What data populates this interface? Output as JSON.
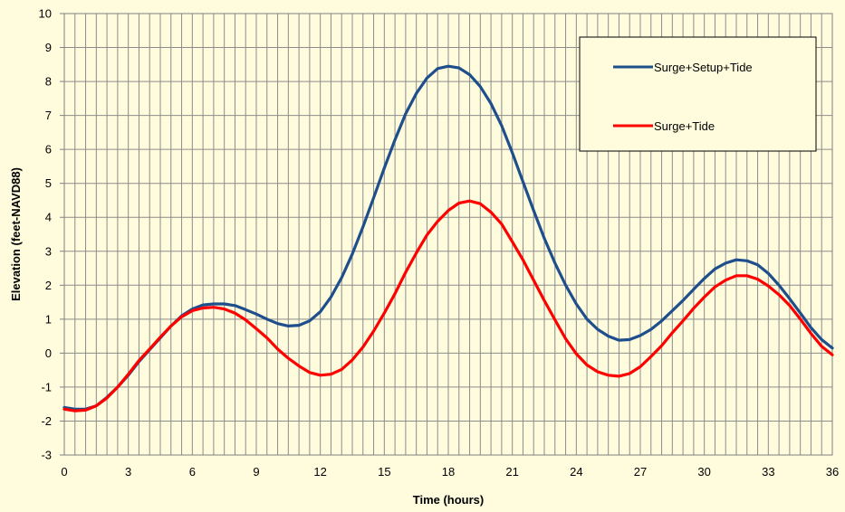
{
  "chart_data": {
    "type": "line",
    "xlabel": "Time (hours)",
    "ylabel": "Elevation (feet-NAVD88)",
    "xlim": [
      0,
      36
    ],
    "ylim": [
      -3,
      10
    ],
    "xticks": [
      "0",
      "3",
      "6",
      "9",
      "12",
      "15",
      "18",
      "21",
      "24",
      "27",
      "30",
      "33",
      "36"
    ],
    "yticks": [
      "-3",
      "-2",
      "-1",
      "0",
      "1",
      "2",
      "3",
      "4",
      "5",
      "6",
      "7",
      "8",
      "9",
      "10"
    ],
    "x_minor_step": 0.5,
    "grid": true,
    "legend_position": "top-right",
    "series": [
      {
        "name": "Surge+Setup+Tide",
        "color": "#1f4e8c",
        "x": [
          0,
          0.5,
          1,
          1.5,
          2,
          2.5,
          3,
          3.5,
          4,
          4.5,
          5,
          5.5,
          6,
          6.5,
          7,
          7.5,
          8,
          8.5,
          9,
          9.5,
          10,
          10.5,
          11,
          11.5,
          12,
          12.5,
          13,
          13.5,
          14,
          14.5,
          15,
          15.5,
          16,
          16.5,
          17,
          17.5,
          18,
          18.5,
          19,
          19.5,
          20,
          20.5,
          21,
          21.5,
          22,
          22.5,
          23,
          23.5,
          24,
          24.5,
          25,
          25.5,
          26,
          26.5,
          27,
          27.5,
          28,
          28.5,
          29,
          29.5,
          30,
          30.5,
          31,
          31.5,
          32,
          32.5,
          33,
          33.5,
          34,
          34.5,
          35,
          35.5,
          36
        ],
        "y": [
          -1.6,
          -1.65,
          -1.65,
          -1.55,
          -1.3,
          -1.0,
          -0.65,
          -0.25,
          0.1,
          0.45,
          0.8,
          1.1,
          1.3,
          1.42,
          1.45,
          1.45,
          1.4,
          1.28,
          1.15,
          1.0,
          0.87,
          0.8,
          0.82,
          0.95,
          1.22,
          1.65,
          2.22,
          2.92,
          3.72,
          4.58,
          5.45,
          6.28,
          7.05,
          7.65,
          8.1,
          8.38,
          8.45,
          8.4,
          8.2,
          7.85,
          7.35,
          6.7,
          5.9,
          5.05,
          4.2,
          3.38,
          2.65,
          2.0,
          1.45,
          1.0,
          0.7,
          0.5,
          0.38,
          0.4,
          0.52,
          0.7,
          0.95,
          1.25,
          1.55,
          1.88,
          2.2,
          2.48,
          2.65,
          2.75,
          2.72,
          2.6,
          2.35,
          2.0,
          1.6,
          1.18,
          0.75,
          0.4,
          0.15
        ]
      },
      {
        "name": "Surge+Tide",
        "color": "#ff0000",
        "x": [
          0,
          0.5,
          1,
          1.5,
          2,
          2.5,
          3,
          3.5,
          4,
          4.5,
          5,
          5.5,
          6,
          6.5,
          7,
          7.5,
          8,
          8.5,
          9,
          9.5,
          10,
          10.5,
          11,
          11.5,
          12,
          12.5,
          13,
          13.5,
          14,
          14.5,
          15,
          15.5,
          16,
          16.5,
          17,
          17.5,
          18,
          18.5,
          19,
          19.5,
          20,
          20.5,
          21,
          21.5,
          22,
          22.5,
          23,
          23.5,
          24,
          24.5,
          25,
          25.5,
          26,
          26.5,
          27,
          27.5,
          28,
          28.5,
          29,
          29.5,
          30,
          30.5,
          31,
          31.5,
          32,
          32.5,
          33,
          33.5,
          34,
          34.5,
          35,
          35.5,
          36
        ],
        "y": [
          -1.65,
          -1.7,
          -1.68,
          -1.55,
          -1.32,
          -1.0,
          -0.62,
          -0.22,
          0.12,
          0.47,
          0.8,
          1.07,
          1.25,
          1.33,
          1.35,
          1.3,
          1.18,
          0.98,
          0.72,
          0.45,
          0.12,
          -0.15,
          -0.38,
          -0.57,
          -0.65,
          -0.62,
          -0.48,
          -0.2,
          0.18,
          0.65,
          1.18,
          1.75,
          2.38,
          2.95,
          3.48,
          3.88,
          4.2,
          4.42,
          4.48,
          4.4,
          4.15,
          3.8,
          3.28,
          2.75,
          2.15,
          1.55,
          0.98,
          0.42,
          -0.02,
          -0.35,
          -0.55,
          -0.65,
          -0.68,
          -0.6,
          -0.4,
          -0.1,
          0.22,
          0.6,
          0.95,
          1.32,
          1.65,
          1.95,
          2.15,
          2.28,
          2.28,
          2.18,
          1.98,
          1.72,
          1.4,
          1.0,
          0.58,
          0.2,
          -0.05
        ]
      }
    ]
  }
}
